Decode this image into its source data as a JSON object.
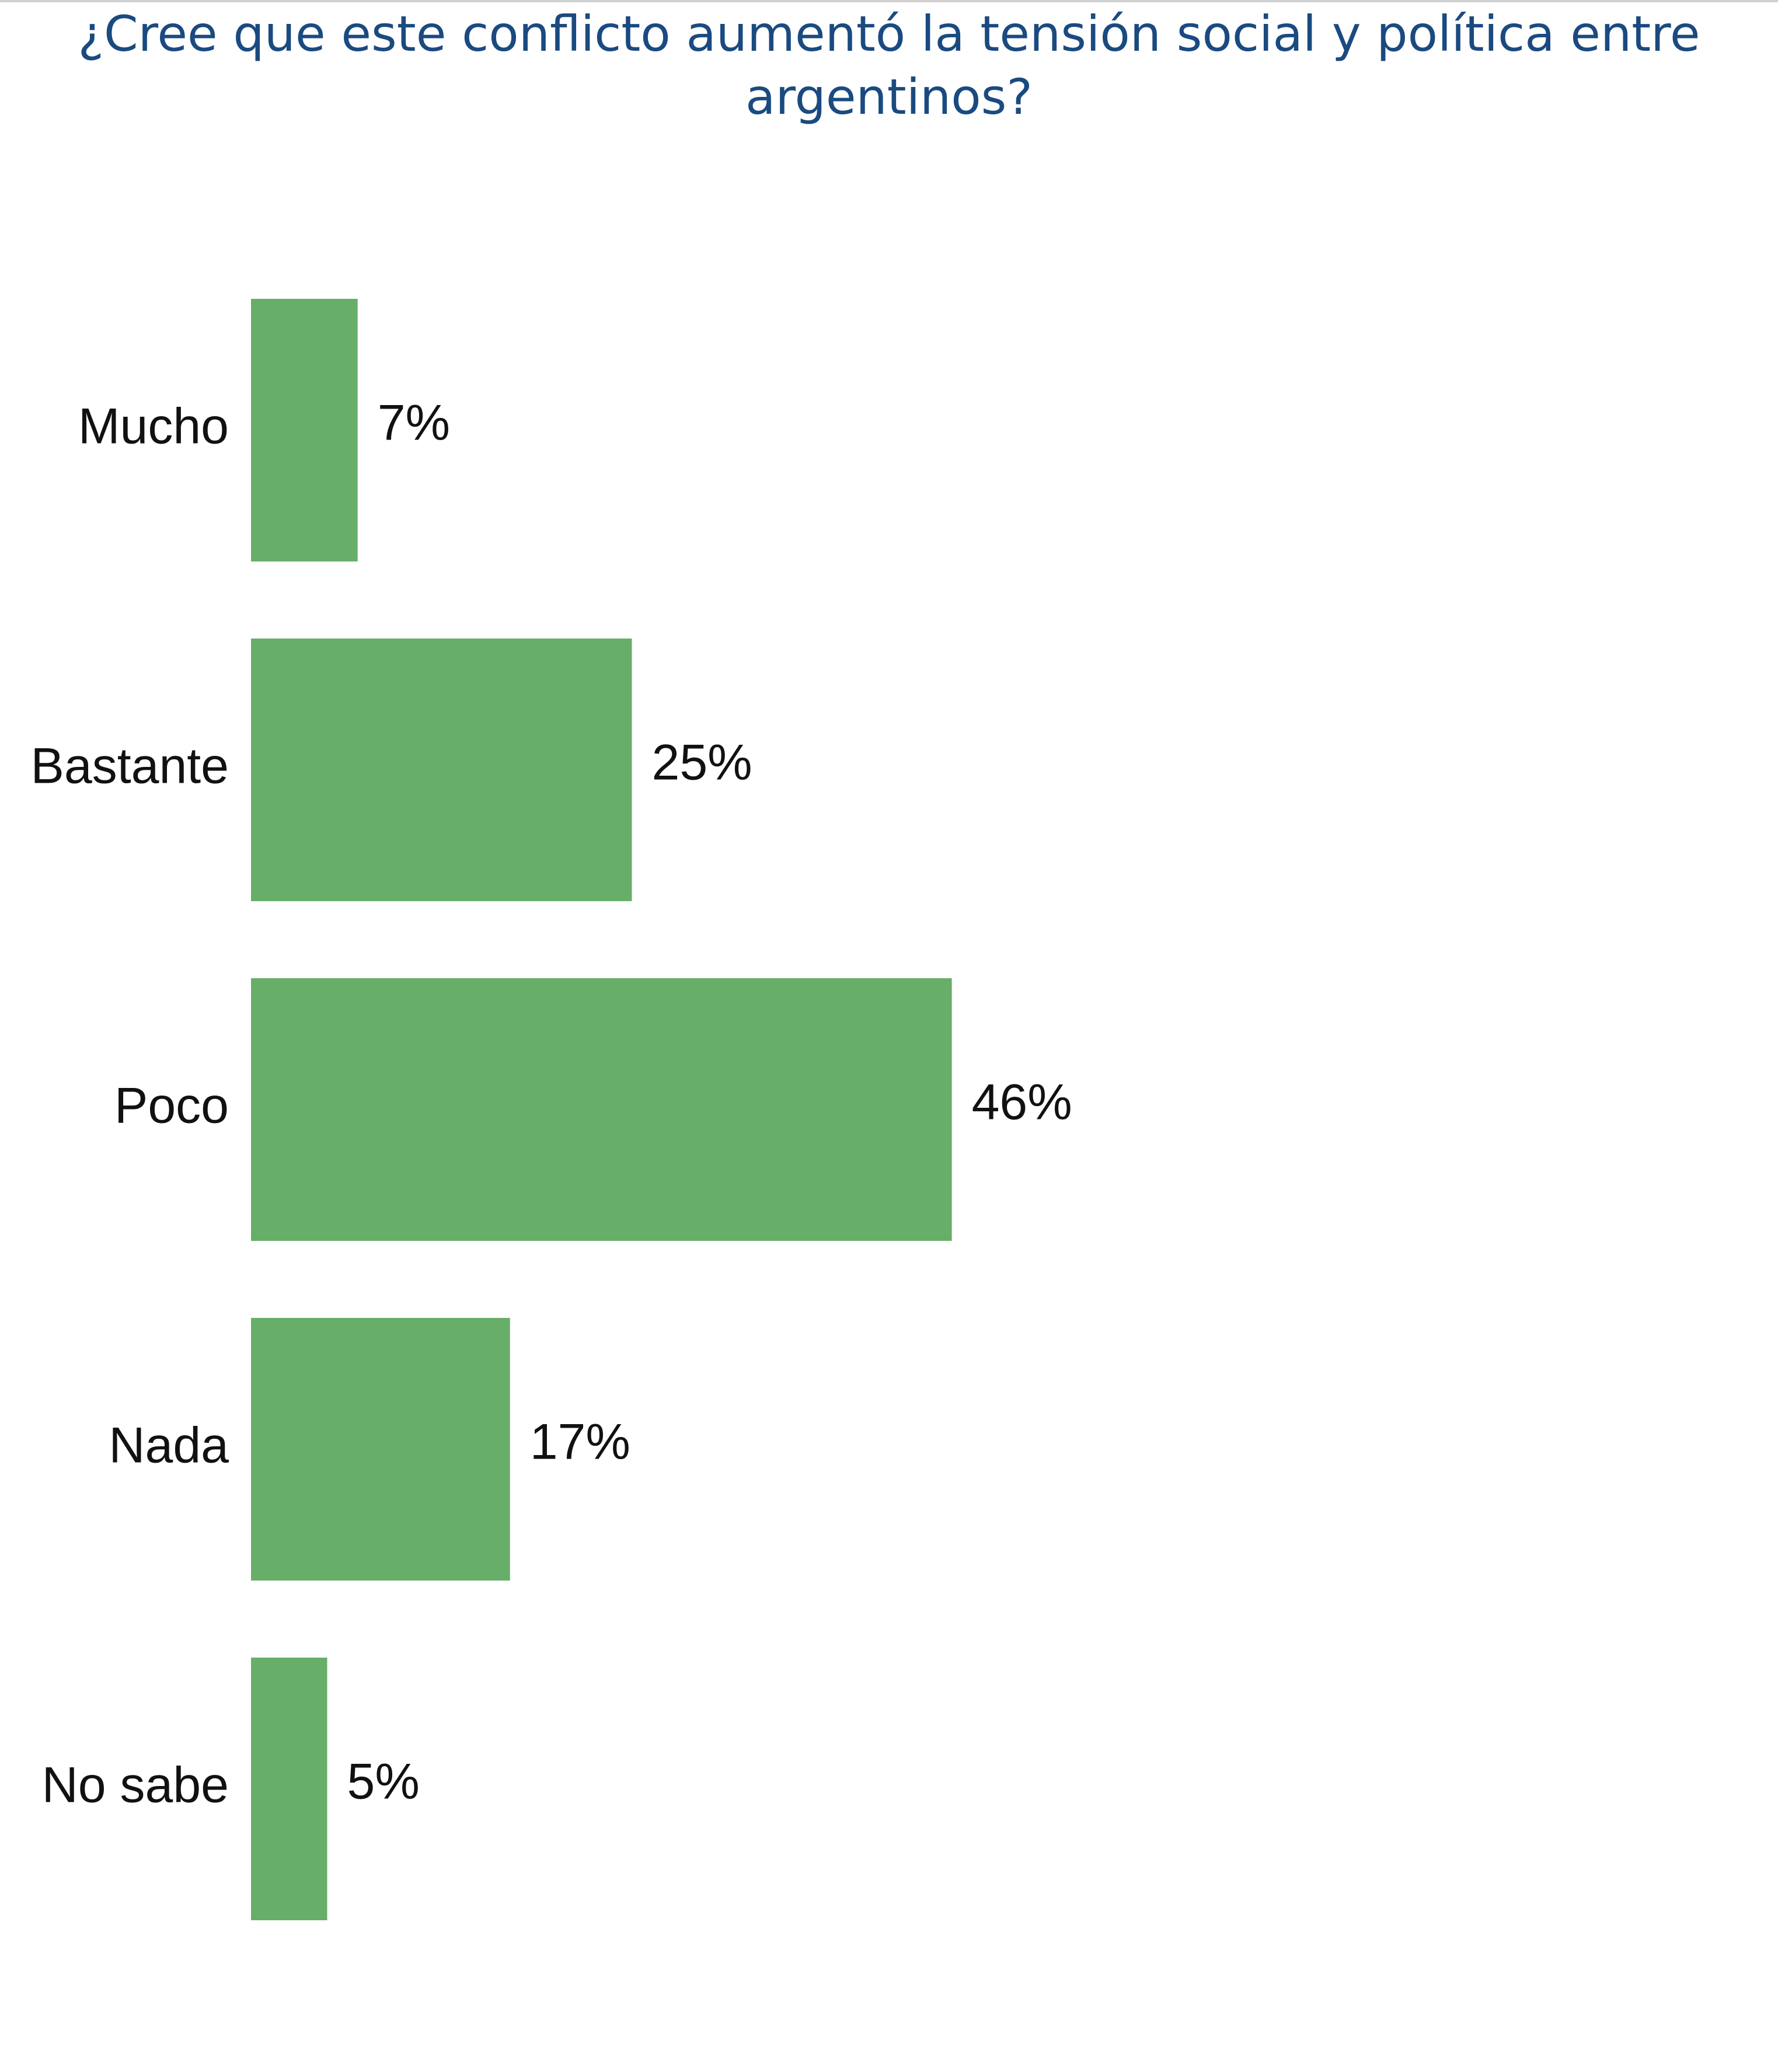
{
  "title_lines": [
    "¿Cree que este conflicto aumentó la tensión social y política entre",
    "argentinos?"
  ],
  "colors": {
    "bar": "#67ae69",
    "title": "#1a4a80",
    "text": "#111111"
  },
  "chart_data": {
    "type": "bar",
    "orientation": "horizontal",
    "title": "¿Cree que este conflicto aumentó la tensión social y política entre argentinos?",
    "categories": [
      "Mucho",
      "Bastante",
      "Poco",
      "Nada",
      "No sabe"
    ],
    "values": [
      7,
      25,
      46,
      17,
      5
    ],
    "value_labels": [
      "7%",
      "25%",
      "46%",
      "17%",
      "5%"
    ],
    "xlim": [
      0,
      100
    ],
    "grid": false,
    "legend": "none"
  }
}
